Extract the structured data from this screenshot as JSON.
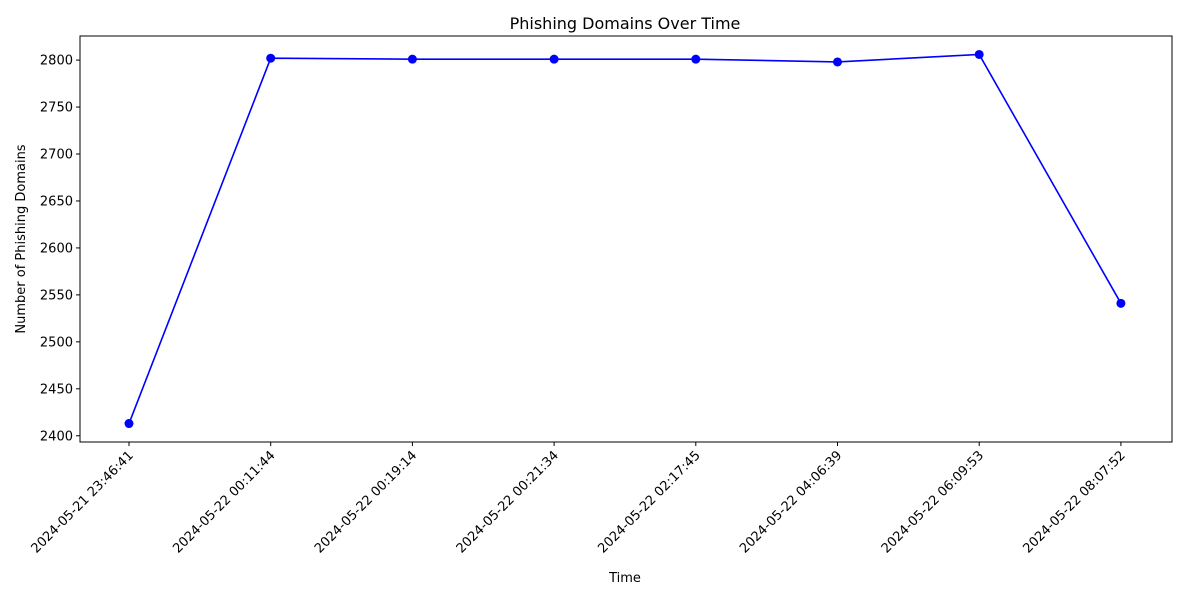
{
  "chart_data": {
    "type": "line",
    "title": "Phishing Domains Over Time",
    "xlabel": "Time",
    "ylabel": "Number of Phishing Domains",
    "x": [
      "2024-05-21 23:46:41",
      "2024-05-22 00:11:44",
      "2024-05-22 00:19:14",
      "2024-05-22 00:21:34",
      "2024-05-22 02:17:45",
      "2024-05-22 04:06:39",
      "2024-05-22 06:09:53",
      "2024-05-22 08:07:52"
    ],
    "series": [
      {
        "values": [
          2413,
          2802,
          2801,
          2801,
          2801,
          2798,
          2806,
          2541
        ]
      }
    ],
    "ylim": [
      2393.35,
      2825.65
    ],
    "yticks": [
      2400,
      2450,
      2500,
      2550,
      2600,
      2650,
      2700,
      2750,
      2800
    ],
    "grid": false,
    "line_color": "#0000ff",
    "marker": "circle"
  }
}
